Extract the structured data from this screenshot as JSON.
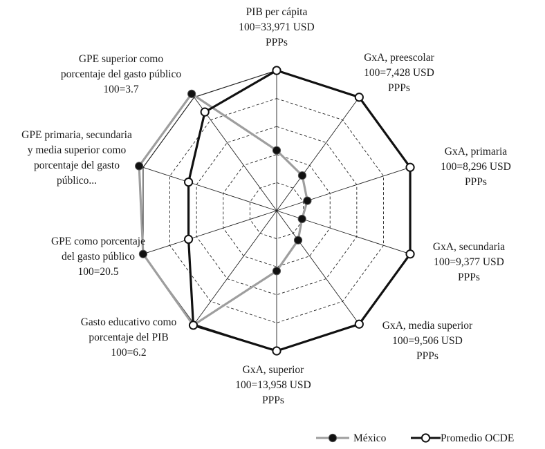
{
  "chart_data": {
    "type": "radar",
    "axis_max": 100,
    "grid_levels": [
      20,
      40,
      60,
      80,
      100
    ],
    "grid_style": "dashed decagons, solid outer decagon",
    "axes": [
      {
        "lines": [
          "PIB per cápita",
          "100=33,971 USD",
          "PPPs"
        ]
      },
      {
        "lines": [
          "GxA, preescolar",
          "100=7,428 USD",
          "PPPs"
        ]
      },
      {
        "lines": [
          "GxA, primaria",
          "100=8,296 USD",
          "PPPs"
        ]
      },
      {
        "lines": [
          "GxA, secundaria",
          "100=9,377 USD",
          "PPPs"
        ]
      },
      {
        "lines": [
          "GxA, media superior",
          "100=9,506 USD",
          "PPPs"
        ]
      },
      {
        "lines": [
          "GxA, superior",
          "100=13,958 USD",
          "PPPs"
        ]
      },
      {
        "lines": [
          "Gasto educativo como",
          "porcentaje del PIB",
          "100=6.2"
        ]
      },
      {
        "lines": [
          "GPE como porcentaje",
          "del gasto público",
          "100=20.5"
        ]
      },
      {
        "lines": [
          "GPE primaria, secundaria",
          "y media superior como",
          "porcentaje del gasto",
          "público..."
        ]
      },
      {
        "lines": [
          "GPE superior como",
          "porcentaje del gasto público",
          "100=3.7"
        ]
      }
    ],
    "series": [
      {
        "name": "México",
        "color": "#9e9e9e",
        "marker": "filled-black-circle",
        "values": [
          43,
          31,
          23,
          19,
          26,
          43,
          101,
          100,
          103,
          103
        ]
      },
      {
        "name": "Promedio OCDE",
        "color": "#111111",
        "marker": "hollow-white-circle",
        "values": [
          100,
          100,
          100,
          100,
          100,
          100,
          101,
          66,
          66,
          87
        ]
      }
    ],
    "legend_position": "bottom-right"
  }
}
